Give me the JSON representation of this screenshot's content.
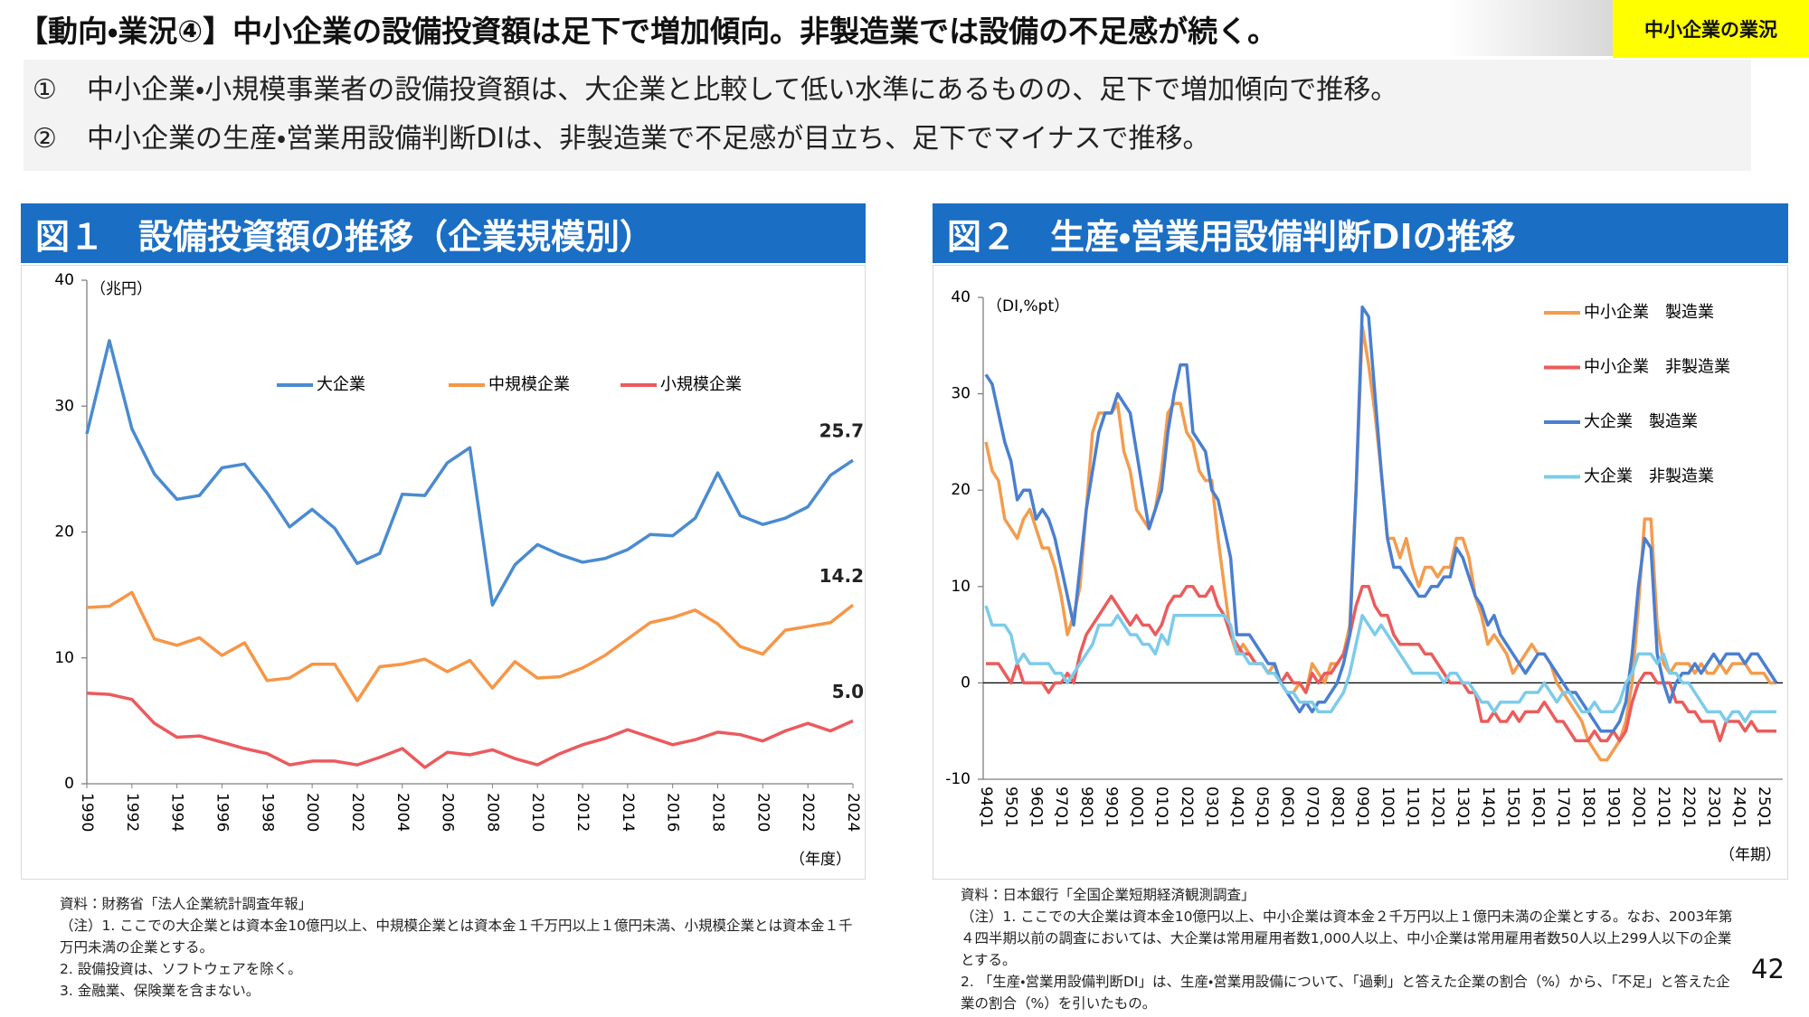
{
  "header": {
    "title": "【動向・業況④】中小企業の設備投資額は足下で増加傾向。非製造業では設備の不足感が続く。",
    "tag": "中小企業の業況"
  },
  "bullets": [
    {
      "marker": "①",
      "text": "中小企業・小規模事業者の設備投資額は、大企業と比較して低い水準にあるものの、足下で増加傾向で推移。"
    },
    {
      "marker": "②",
      "text": "中小企業の生産・営業用設備判断DIは、非製造業で不足感が目立ち、足下でマイナスで推移。"
    }
  ],
  "page_number": "42",
  "chart_data": [
    {
      "type": "line",
      "title": "図１　設備投資額の推移（企業規模別）",
      "y_unit_label": "（兆円）",
      "x_unit_label": "（年度）",
      "x": [
        1990,
        1991,
        1992,
        1993,
        1994,
        1995,
        1996,
        1997,
        1998,
        1999,
        2000,
        2001,
        2002,
        2003,
        2004,
        2005,
        2006,
        2007,
        2008,
        2009,
        2010,
        2011,
        2012,
        2013,
        2014,
        2015,
        2016,
        2017,
        2018,
        2019,
        2020,
        2021,
        2022,
        2023,
        2024
      ],
      "xlim": [
        1990,
        2024
      ],
      "xticks": [
        1990,
        1992,
        1994,
        1996,
        1998,
        2000,
        2002,
        2004,
        2006,
        2008,
        2010,
        2012,
        2014,
        2016,
        2018,
        2020,
        2022,
        2024
      ],
      "ylim": [
        0,
        40
      ],
      "yticks": [
        0,
        10,
        20,
        30,
        40
      ],
      "grid": false,
      "legend": "top",
      "data_labels": "last",
      "series": [
        {
          "name": "大企業",
          "color": "#4a8bd0",
          "values": [
            27.8,
            35.2,
            28.2,
            24.6,
            22.6,
            22.9,
            25.1,
            25.4,
            23.1,
            20.4,
            21.8,
            20.3,
            17.5,
            18.3,
            23.0,
            22.9,
            25.5,
            26.7,
            14.2,
            17.4,
            19.0,
            18.2,
            17.6,
            17.9,
            18.6,
            19.8,
            19.7,
            21.1,
            24.7,
            21.3,
            20.6,
            21.1,
            22.0,
            24.5,
            25.7
          ]
        },
        {
          "name": "中規模企業",
          "color": "#f79646",
          "values": [
            14.0,
            14.1,
            15.2,
            11.5,
            11.0,
            11.6,
            10.2,
            11.2,
            8.2,
            8.4,
            9.5,
            9.5,
            6.6,
            9.3,
            9.5,
            9.9,
            8.9,
            9.8,
            7.6,
            9.7,
            8.4,
            8.5,
            9.2,
            10.2,
            11.5,
            12.8,
            13.2,
            13.8,
            12.7,
            10.9,
            10.3,
            12.2,
            12.5,
            12.8,
            14.2
          ]
        },
        {
          "name": "小規模企業",
          "color": "#eb5a5e",
          "values": [
            7.2,
            7.1,
            6.7,
            4.8,
            3.7,
            3.8,
            3.3,
            2.8,
            2.4,
            1.5,
            1.8,
            1.8,
            1.5,
            2.1,
            2.8,
            1.3,
            2.5,
            2.3,
            2.7,
            2.0,
            1.5,
            2.4,
            3.1,
            3.6,
            4.3,
            3.7,
            3.1,
            3.5,
            4.1,
            3.9,
            3.4,
            4.2,
            4.8,
            4.2,
            5.0
          ],
          "value_labels": [
            null,
            null,
            null,
            null,
            null,
            null,
            null,
            null,
            null,
            null,
            null,
            null,
            null,
            null,
            null,
            null,
            null,
            null,
            null,
            null,
            null,
            null,
            null,
            null,
            null,
            null,
            null,
            null,
            null,
            null,
            null,
            null,
            null,
            null,
            "5.0"
          ]
        }
      ],
      "source": "資料：財務省「法人企業統計調査年報」",
      "notes": [
        "（注）1. ここでの大企業とは資本金10億円以上、中規模企業とは資本金１千万円以上１億円未満、小規模企業とは資本金１千万円未満の企業とする。",
        "2. 設備投資は、ソフトウェアを除く。",
        "3. 金融業、保険業を含まない。"
      ]
    },
    {
      "type": "line",
      "title": "図２　生産・営業用設備判断DIの推移",
      "y_unit_label": "（DI,%pt）",
      "x_unit_label": "（年期）",
      "categories": [
        "94Q1",
        null,
        null,
        null,
        "95Q1",
        null,
        null,
        null,
        "96Q1",
        null,
        null,
        null,
        "97Q1",
        null,
        null,
        null,
        "98Q1",
        null,
        null,
        null,
        "99Q1",
        null,
        null,
        null,
        "00Q1",
        null,
        null,
        null,
        "01Q1",
        null,
        null,
        null,
        "02Q1",
        null,
        null,
        null,
        "03Q1",
        null,
        null,
        null,
        "04Q1",
        null,
        null,
        null,
        "05Q1",
        null,
        null,
        null,
        "06Q1",
        null,
        null,
        null,
        "07Q1",
        null,
        null,
        null,
        "08Q1",
        null,
        null,
        null,
        "09Q1",
        null,
        null,
        null,
        "10Q1",
        null,
        null,
        null,
        "11Q1",
        null,
        null,
        null,
        "12Q1",
        null,
        null,
        null,
        "13Q1",
        null,
        null,
        null,
        "14Q1",
        null,
        null,
        null,
        "15Q1",
        null,
        null,
        null,
        "16Q1",
        null,
        null,
        null,
        "17Q1",
        null,
        null,
        null,
        "18Q1",
        null,
        null,
        null,
        "19Q1",
        null,
        null,
        null,
        "20Q1",
        null,
        null,
        null,
        "21Q1",
        null,
        null,
        null,
        "22Q1",
        null,
        null,
        null,
        "23Q1",
        null,
        null,
        null,
        "24Q1",
        null,
        null,
        null,
        "25Q1",
        null,
        null
      ],
      "ylim": [
        -10,
        40
      ],
      "yticks": [
        -10,
        0,
        10,
        20,
        30,
        40
      ],
      "grid": false,
      "legend": "right",
      "zero_line": true,
      "series": [
        {
          "name": "中小企業　製造業",
          "color": "#f39c4e",
          "values": [
            25,
            22,
            21,
            17,
            16,
            15,
            17,
            18,
            16,
            14,
            14,
            12,
            9,
            5,
            7,
            10,
            18,
            26,
            28,
            28,
            28,
            29,
            24,
            22,
            18,
            17,
            16,
            18,
            22,
            28,
            29,
            29,
            26,
            25,
            22,
            21,
            21,
            15,
            10,
            5,
            3,
            4,
            3,
            2,
            2,
            1,
            2,
            0,
            -1,
            -1,
            0,
            -1,
            2,
            1,
            0,
            2,
            2,
            3,
            6,
            20,
            37,
            33,
            28,
            22,
            15,
            15,
            13,
            15,
            12,
            10,
            12,
            12,
            11,
            12,
            12,
            15,
            15,
            13,
            9,
            7,
            4,
            5,
            4,
            3,
            1,
            2,
            3,
            4,
            3,
            3,
            2,
            0,
            -1,
            -2,
            -3,
            -4,
            -6,
            -7,
            -8,
            -8,
            -7,
            -6,
            -4,
            0,
            8,
            17,
            17,
            6,
            2,
            1,
            2,
            2,
            2,
            1,
            2,
            1,
            1,
            2,
            1,
            2,
            2,
            2,
            1,
            1,
            1,
            0,
            0
          ]
        },
        {
          "name": "中小企業　非製造業",
          "color": "#ec5b5b",
          "values": [
            2,
            2,
            2,
            1,
            0,
            2,
            0,
            0,
            0,
            0,
            -1,
            0,
            0,
            1,
            0,
            3,
            5,
            6,
            7,
            8,
            9,
            8,
            7,
            6,
            7,
            6,
            6,
            5,
            6,
            8,
            9,
            9,
            10,
            10,
            9,
            9,
            10,
            8,
            7,
            5,
            4,
            3,
            3,
            2,
            2,
            1,
            1,
            0,
            1,
            0,
            0,
            -1,
            1,
            0,
            1,
            1,
            2,
            3,
            5,
            8,
            10,
            10,
            8,
            7,
            7,
            5,
            4,
            4,
            4,
            4,
            3,
            3,
            2,
            1,
            0,
            0,
            0,
            -1,
            -1,
            -4,
            -4,
            -3,
            -4,
            -4,
            -3,
            -4,
            -3,
            -3,
            -3,
            -2,
            -3,
            -4,
            -4,
            -5,
            -6,
            -6,
            -6,
            -5,
            -6,
            -6,
            -5,
            -6,
            -5,
            -2,
            0,
            1,
            1,
            0,
            0,
            0,
            -2,
            -2,
            -3,
            -3,
            -4,
            -4,
            -4,
            -6,
            -4,
            -4,
            -4,
            -5,
            -4,
            -5,
            -5,
            -5,
            -5
          ]
        },
        {
          "name": "大企業　製造業",
          "color": "#4a7fd0",
          "values": [
            32,
            31,
            28,
            25,
            23,
            19,
            20,
            20,
            17,
            18,
            17,
            15,
            12,
            9,
            6,
            12,
            18,
            22,
            26,
            28,
            28,
            30,
            29,
            28,
            24,
            20,
            16,
            18,
            20,
            26,
            30,
            33,
            33,
            26,
            25,
            24,
            20,
            19,
            16,
            13,
            5,
            5,
            5,
            4,
            3,
            2,
            2,
            0,
            -1,
            -2,
            -3,
            -2,
            -3,
            -2,
            -2,
            -1,
            0,
            2,
            5,
            20,
            39,
            38,
            30,
            22,
            15,
            12,
            12,
            11,
            10,
            9,
            9,
            10,
            10,
            11,
            11,
            14,
            13,
            11,
            9,
            8,
            6,
            7,
            5,
            4,
            3,
            2,
            1,
            2,
            3,
            3,
            2,
            1,
            0,
            -1,
            -1,
            -2,
            -3,
            -4,
            -5,
            -5,
            -5,
            -4,
            -2,
            3,
            10,
            15,
            14,
            3,
            0,
            -2,
            0,
            1,
            1,
            2,
            1,
            2,
            3,
            2,
            3,
            3,
            3,
            2,
            3,
            3,
            2,
            1,
            0
          ]
        },
        {
          "name": "大企業　非製造業",
          "color": "#7dcbea",
          "values": [
            8,
            6,
            6,
            6,
            5,
            2,
            3,
            2,
            2,
            2,
            2,
            1,
            1,
            0,
            1,
            2,
            3,
            4,
            6,
            6,
            6,
            7,
            6,
            5,
            5,
            4,
            4,
            3,
            5,
            4,
            7,
            7,
            7,
            7,
            7,
            7,
            7,
            7,
            7,
            6,
            3,
            3,
            2,
            2,
            2,
            1,
            1,
            0,
            -1,
            -1,
            -2,
            -2,
            -2,
            -3,
            -3,
            -3,
            -2,
            -1,
            1,
            4,
            7,
            6,
            5,
            6,
            5,
            4,
            3,
            2,
            1,
            1,
            1,
            1,
            1,
            0,
            1,
            1,
            0,
            0,
            -1,
            -2,
            -2,
            -3,
            -2,
            -2,
            -2,
            -2,
            -1,
            -1,
            -1,
            0,
            -1,
            -2,
            -1,
            -1,
            -2,
            -3,
            -3,
            -2,
            -3,
            -3,
            -3,
            -2,
            0,
            1,
            3,
            3,
            3,
            2,
            3,
            1,
            1,
            0,
            0,
            -1,
            -2,
            -3,
            -3,
            -3,
            -4,
            -3,
            -3,
            -4,
            -3,
            -3,
            -3,
            -3,
            -3
          ]
        }
      ],
      "source": "資料：日本銀行「全国企業短期経済観測調査」",
      "notes": [
        "（注）1. ここでの大企業は資本金10億円以上、中小企業は資本金２千万円以上１億円未満の企業とする。なお、2003年第４四半期以前の調査においては、大企業は常用雇用者数1,000人以上、中小企業は常用雇用者数50人以上299人以下の企業とする。",
        "2. 「生産・営業用設備判断DI」は、生産・営業用設備について、「過剰」と答えた企業の割合（%）から、「不足」と答えた企業の割合（%）を引いたもの。"
      ]
    }
  ]
}
